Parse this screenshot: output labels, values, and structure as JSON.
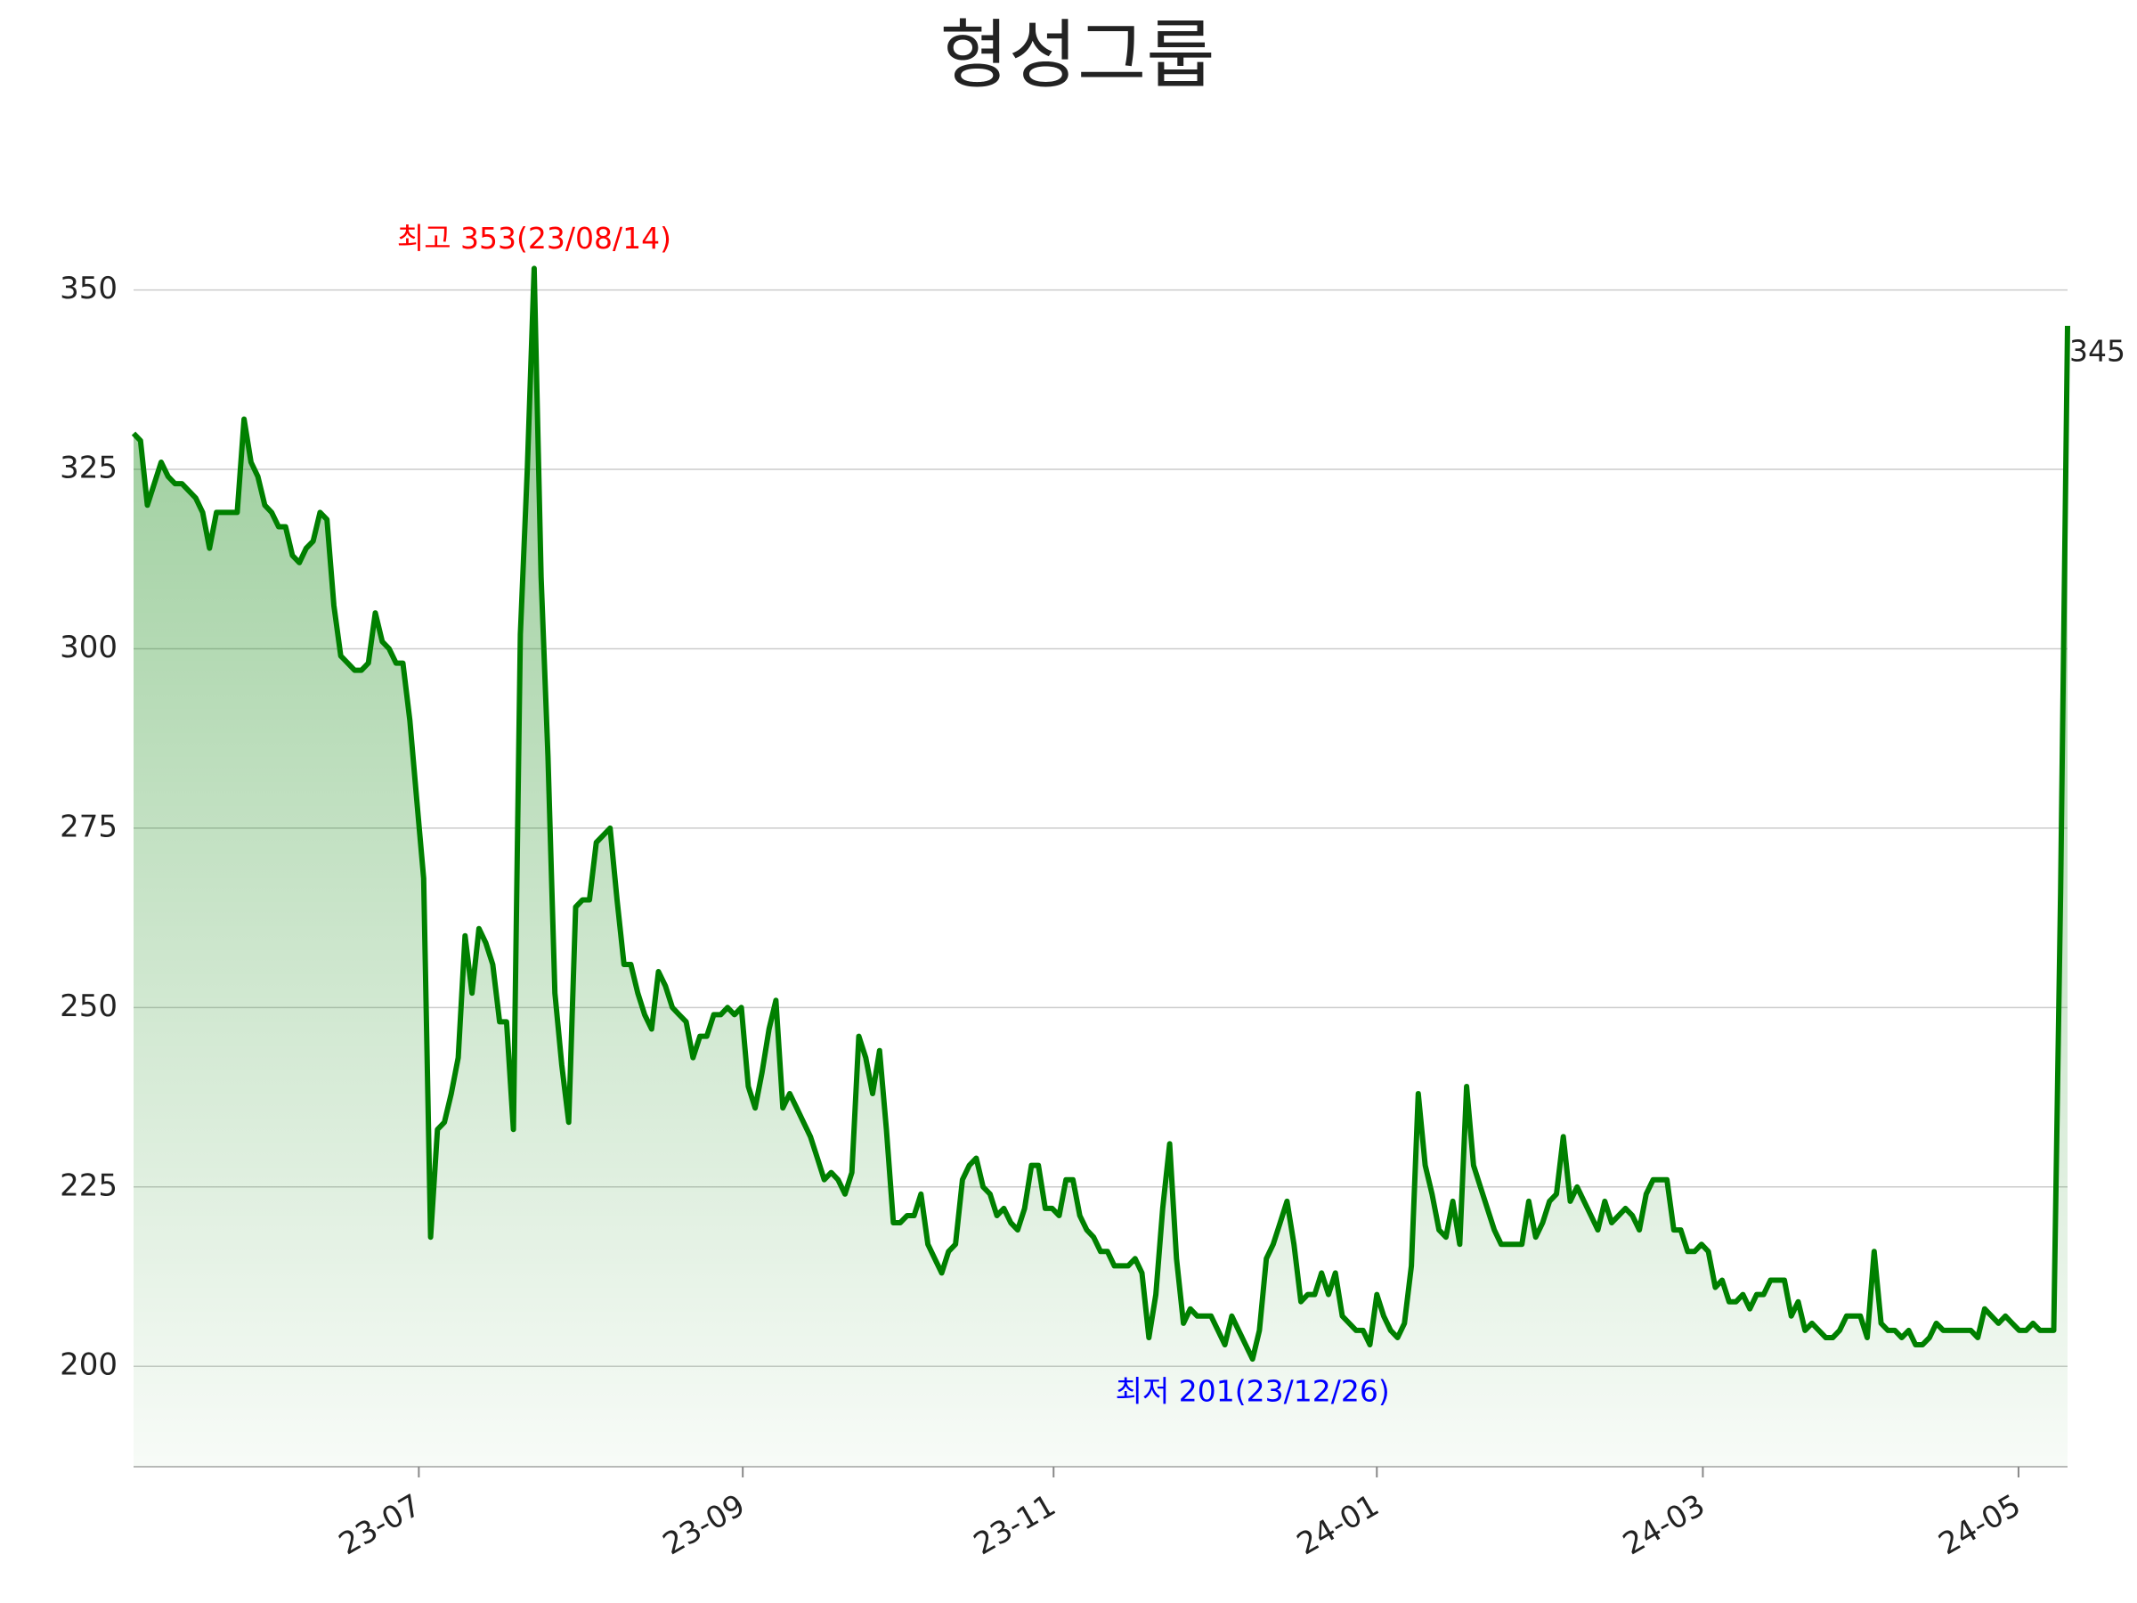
{
  "chart_data": {
    "type": "line",
    "title": "형성그룹",
    "color": "#008000",
    "values": [
      330,
      329,
      320,
      323,
      326,
      324,
      323,
      323,
      322,
      321,
      319,
      314,
      319,
      319,
      319,
      319,
      332,
      326,
      324,
      320,
      319,
      317,
      317,
      313,
      312,
      314,
      315,
      319,
      318,
      306,
      299,
      298,
      297,
      297,
      298,
      305,
      301,
      300,
      298,
      298,
      290,
      279,
      268,
      218,
      233,
      234,
      238,
      243,
      260,
      252,
      261,
      259,
      256,
      248,
      248,
      233,
      302,
      325,
      353,
      310,
      285,
      252,
      242,
      234,
      264,
      265,
      265,
      273,
      274,
      275,
      265,
      256,
      256,
      252,
      249,
      247,
      255,
      253,
      250,
      249,
      248,
      243,
      246,
      246,
      249,
      249,
      250,
      249,
      250,
      239,
      236,
      241,
      247,
      251,
      236,
      238,
      236,
      234,
      232,
      229,
      226,
      227,
      226,
      224,
      227,
      246,
      243,
      238,
      244,
      233,
      220,
      220,
      221,
      221,
      224,
      217,
      215,
      213,
      216,
      217,
      226,
      228,
      229,
      225,
      224,
      221,
      222,
      220,
      219,
      222,
      228,
      228,
      222,
      222,
      221,
      226,
      226,
      221,
      219,
      218,
      216,
      216,
      214,
      214,
      214,
      215,
      213,
      204,
      210,
      222,
      231,
      215,
      206,
      208,
      207,
      207,
      207,
      205,
      203,
      207,
      205,
      203,
      201,
      205,
      215,
      217,
      220,
      223,
      217,
      209,
      210,
      210,
      213,
      210,
      213,
      207,
      206,
      205,
      205,
      203,
      210,
      207,
      205,
      204,
      206,
      214,
      238,
      228,
      224,
      219,
      218,
      223,
      217,
      239,
      228,
      225,
      222,
      219,
      217,
      217,
      217,
      217,
      223,
      218,
      220,
      223,
      224,
      232,
      223,
      225,
      223,
      221,
      219,
      223,
      220,
      221,
      222,
      221,
      219,
      224,
      226,
      226,
      226,
      219,
      219,
      216,
      216,
      217,
      216,
      211,
      212,
      209,
      209,
      210,
      208,
      210,
      210,
      212,
      212,
      212,
      207,
      209,
      205,
      206,
      205,
      204,
      204,
      205,
      207,
      207,
      207,
      204,
      216,
      206,
      205,
      205,
      204,
      205,
      203,
      203,
      204,
      206,
      205,
      205,
      205,
      205,
      205,
      204,
      208,
      207,
      206,
      207,
      206,
      205,
      205,
      206,
      205,
      205,
      205,
      266,
      345
    ],
    "xlim": [
      0,
      280
    ],
    "xticks": [
      {
        "value": 41.3,
        "label": "23-07"
      },
      {
        "value": 88.2,
        "label": "23-09"
      },
      {
        "value": 133.2,
        "label": "23-11"
      },
      {
        "value": 180,
        "label": "24-01"
      },
      {
        "value": 227.2,
        "label": "24-03"
      },
      {
        "value": 272.9,
        "label": "24-05"
      }
    ],
    "ylim": [
      186,
      360
    ],
    "yticks": [
      200,
      225,
      250,
      275,
      300,
      325,
      350
    ],
    "grid": true,
    "annotations": {
      "high": {
        "text": "최고 353(23/08/14)",
        "color": "#ff0000"
      },
      "low": {
        "text": "최저 201(23/12/26)",
        "color": "#0000ff"
      }
    }
  }
}
